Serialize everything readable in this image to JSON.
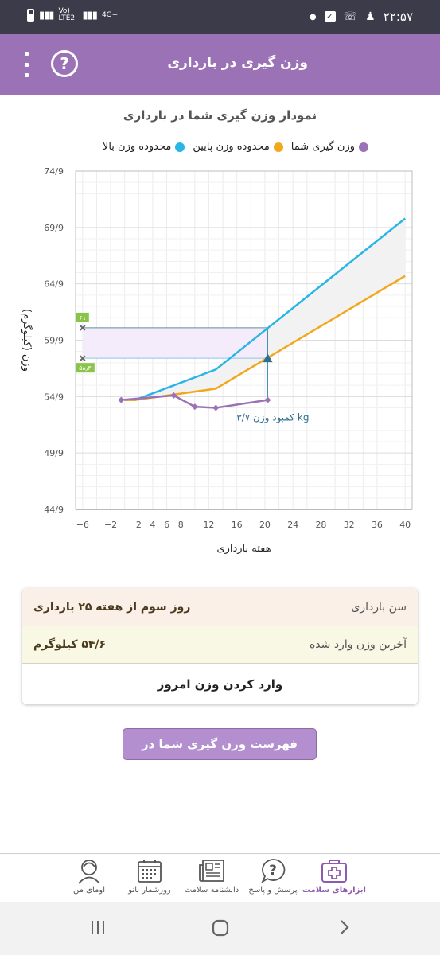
{
  "status_bar": {
    "time": "۲۲:۵۷",
    "network_label": "Vo) LTE2",
    "network_type": "4G+",
    "icons": [
      "battery-icon",
      "signal-icon",
      "notification-dot-icon",
      "checkbox-icon",
      "sim2-call-icon",
      "lock-person-icon"
    ]
  },
  "app_bar": {
    "title": "وزن گیری در بارداری",
    "help_symbol": "?",
    "icons": [
      "more-vert-icon",
      "help-icon"
    ]
  },
  "chart_section": {
    "title": "نمودار وزن گیری شما در بارداری",
    "legend": [
      {
        "label": "محدوده وزن بالا",
        "color": "#29b6e6"
      },
      {
        "label": "محدوده وزن پایین",
        "color": "#f2a81d"
      },
      {
        "label": "وزن گیری شما",
        "color": "#9a72b5"
      }
    ]
  },
  "chart_data": {
    "type": "line",
    "title": "",
    "xlabel": "هفته بارداری",
    "ylabel": "وزن (کیلوگرم)",
    "xlim": [
      -7,
      41
    ],
    "ylim": [
      44.9,
      74.9
    ],
    "x_ticks": [
      "−6",
      "−2",
      "2",
      "4",
      "6",
      "8",
      "12",
      "16",
      "20",
      "24",
      "28",
      "32",
      "36",
      "40"
    ],
    "x_tick_values": [
      -6,
      -2,
      2,
      4,
      6,
      8,
      12,
      16,
      20,
      24,
      28,
      32,
      36,
      40
    ],
    "y_ticks": [
      "74/9",
      "69/9",
      "64/9",
      "59/9",
      "54/9",
      "49/9",
      "44/9"
    ],
    "y_tick_values": [
      74.9,
      69.9,
      64.9,
      59.9,
      54.9,
      49.9,
      44.9
    ],
    "grid": true,
    "series": [
      {
        "name": "محدوده وزن بالا",
        "color": "#29b6e6",
        "x": [
          0,
          1.5,
          13,
          40
        ],
        "y": [
          54.6,
          54.6,
          57.3,
          70.7
        ]
      },
      {
        "name": "محدوده وزن پایین",
        "color": "#f2a81d",
        "x": [
          0,
          1.5,
          13,
          40
        ],
        "y": [
          54.6,
          54.6,
          55.6,
          65.6
        ]
      },
      {
        "name": "وزن گیری شما",
        "color": "#9a72b5",
        "x": [
          -0.5,
          7,
          10,
          13,
          20.4
        ],
        "y": [
          54.6,
          55.0,
          54.0,
          53.9,
          54.6
        ]
      }
    ],
    "markers": {
      "upper_value": 61.0,
      "lower_value": 58.3,
      "upper_label": "۶۱",
      "lower_label": "۵۸٫۳",
      "current_week": 20.4,
      "expected_weight": 58.3
    },
    "annotation": "کمبود وزن ۳/۷ kg"
  },
  "info_card": {
    "age_label": "سن بارداری",
    "age_value": "روز سوم از هفته ۲۵ بارداری",
    "last_weight_label": "آخرین وزن وارد شده",
    "last_weight_value": "۵۴/۶ کیلوگرم",
    "enter_weight_button": "وارد کردن وزن امروز"
  },
  "list_button": "فهرست وزن گیری شما در بارداری",
  "bottom_nav": [
    {
      "label": "اومای من",
      "icon": "woman-avatar-icon"
    },
    {
      "label": "روزشمار بانو",
      "icon": "calendar-icon"
    },
    {
      "label": "دانشنامه سلامت",
      "icon": "newspaper-icon"
    },
    {
      "label": "پرسش و پاسخ",
      "icon": "question-bubble-icon"
    },
    {
      "label": "ابزارهای سلامت",
      "icon": "medical-kit-icon",
      "active": true
    }
  ],
  "system_nav": [
    "recent-apps-icon",
    "home-icon",
    "back-icon"
  ]
}
